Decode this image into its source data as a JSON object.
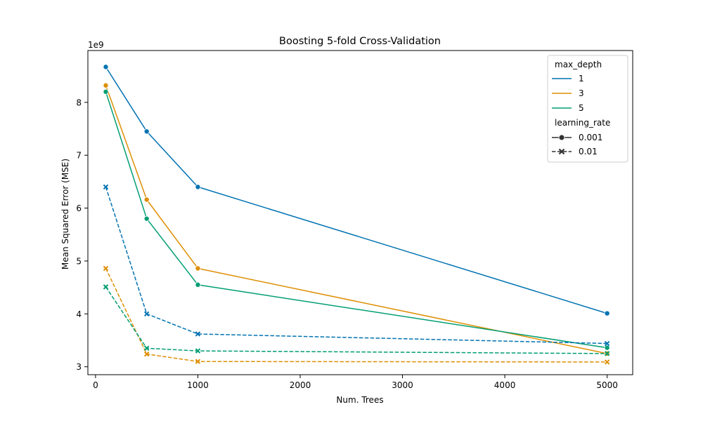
{
  "chart_data": {
    "type": "line",
    "title": "Boosting 5-fold Cross-Validation",
    "xlabel": "Num. Trees",
    "ylabel": "Mean Squared Error (MSE)",
    "y_offset_label": "1e9",
    "y_scale_exponent": 9,
    "xlim": [
      -75,
      5250
    ],
    "ylim": [
      2.85,
      8.98
    ],
    "x_ticks": [
      0,
      1000,
      2000,
      3000,
      4000,
      5000
    ],
    "y_ticks": [
      3,
      4,
      5,
      6,
      7,
      8
    ],
    "x": [
      100,
      500,
      1000,
      5000
    ],
    "grid": false,
    "legend": {
      "placement": "top-right",
      "hue_title": "max_depth",
      "hue_entries": [
        {
          "label": "1",
          "color": "#0173b2"
        },
        {
          "label": "3",
          "color": "#de8f05"
        },
        {
          "label": "5",
          "color": "#029e73"
        }
      ],
      "style_title": "learning_rate",
      "style_entries": [
        {
          "label": "0.001",
          "marker": "circle",
          "dash": "solid"
        },
        {
          "label": "0.01",
          "marker": "x",
          "dash": "dashed"
        }
      ]
    },
    "series": [
      {
        "max_depth": "1",
        "learning_rate": "0.001",
        "color": "#0173b2",
        "marker": "circle",
        "dash": "solid",
        "values": [
          8.67,
          7.45,
          6.4,
          4.01
        ]
      },
      {
        "max_depth": "3",
        "learning_rate": "0.001",
        "color": "#de8f05",
        "marker": "circle",
        "dash": "solid",
        "values": [
          8.32,
          6.16,
          4.86,
          3.25
        ]
      },
      {
        "max_depth": "5",
        "learning_rate": "0.001",
        "color": "#029e73",
        "marker": "circle",
        "dash": "solid",
        "values": [
          8.2,
          5.8,
          4.55,
          3.36
        ]
      },
      {
        "max_depth": "1",
        "learning_rate": "0.01",
        "color": "#0173b2",
        "marker": "x",
        "dash": "dashed",
        "values": [
          6.4,
          4.0,
          3.62,
          3.44
        ]
      },
      {
        "max_depth": "3",
        "learning_rate": "0.01",
        "color": "#de8f05",
        "marker": "x",
        "dash": "dashed",
        "values": [
          4.86,
          3.24,
          3.1,
          3.09
        ]
      },
      {
        "max_depth": "5",
        "learning_rate": "0.01",
        "color": "#029e73",
        "marker": "x",
        "dash": "dashed",
        "values": [
          4.51,
          3.35,
          3.3,
          3.25
        ]
      }
    ]
  }
}
